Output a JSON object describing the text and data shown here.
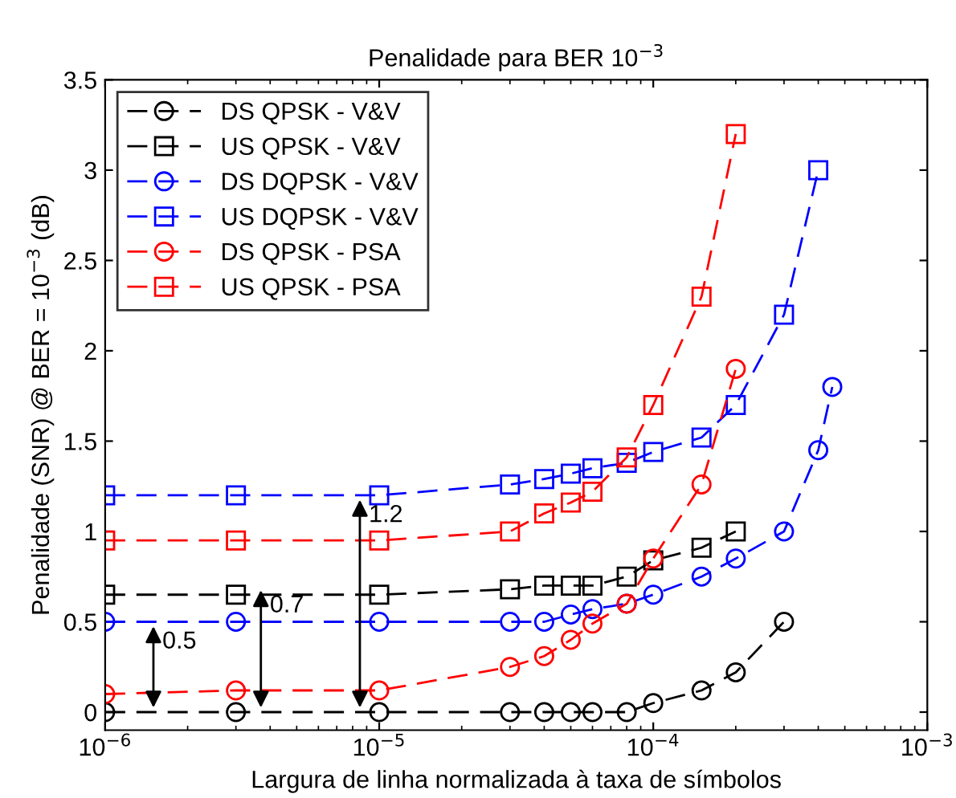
{
  "chart_data": {
    "type": "line",
    "title": "Penalidade para BER 10$^{−3}$",
    "xlabel": "Largura de linha normalizada à taxa de símbolos",
    "ylabel": "Penalidade (SNR) @ BER = 10$^{−3}$ (dB)",
    "log": "x",
    "xlim": [
      1e-06,
      0.001
    ],
    "xticks": [
      {
        "value": 1e-06,
        "label": "10$^{−6}$"
      },
      {
        "value": 1e-05,
        "label": "10$^{−5}$"
      },
      {
        "value": 0.0001,
        "label": "10$^{−4}$"
      },
      {
        "value": 0.001,
        "label": "10$^{−3}$"
      }
    ],
    "ylim": [
      -0.1,
      3.5
    ],
    "yticks": [
      0,
      0.5,
      1,
      1.5,
      2,
      2.5,
      3,
      3.5
    ],
    "grid": false,
    "legend": "top left",
    "line_style": "dashed",
    "series": [
      {
        "name": "DS QPSK - V&V",
        "color": "#000000",
        "marker": "circle",
        "x": [
          1e-06,
          3e-06,
          1e-05,
          3e-05,
          4e-05,
          5e-05,
          6e-05,
          8e-05,
          0.0001,
          0.00015,
          0.0002,
          0.0003
        ],
        "values": [
          0,
          0,
          0,
          0,
          0,
          0,
          0,
          0,
          0.05,
          0.12,
          0.22,
          0.5
        ]
      },
      {
        "name": "US QPSK - V&V",
        "color": "#000000",
        "marker": "square",
        "x": [
          1e-06,
          3e-06,
          1e-05,
          3e-05,
          4e-05,
          5e-05,
          6e-05,
          8e-05,
          0.0001,
          0.00015,
          0.0002
        ],
        "values": [
          0.65,
          0.65,
          0.65,
          0.68,
          0.7,
          0.7,
          0.7,
          0.75,
          0.84,
          0.91,
          1.0
        ]
      },
      {
        "name": "DS DQPSK - V&V",
        "color": "#0000ff",
        "marker": "circle",
        "x": [
          1e-06,
          3e-06,
          1e-05,
          3e-05,
          4e-05,
          5e-05,
          6e-05,
          8e-05,
          0.0001,
          0.00015,
          0.0002,
          0.0003,
          0.0004,
          0.00045
        ],
        "values": [
          0.5,
          0.5,
          0.5,
          0.5,
          0.5,
          0.54,
          0.57,
          0.6,
          0.65,
          0.75,
          0.85,
          1.0,
          1.45,
          1.8
        ]
      },
      {
        "name": "US DQPSK - V&V",
        "color": "#0000ff",
        "marker": "square",
        "x": [
          1e-06,
          3e-06,
          1e-05,
          3e-05,
          4e-05,
          5e-05,
          6e-05,
          8e-05,
          0.0001,
          0.00015,
          0.0002,
          0.0003,
          0.0004
        ],
        "values": [
          1.2,
          1.2,
          1.2,
          1.26,
          1.29,
          1.32,
          1.35,
          1.38,
          1.44,
          1.52,
          1.7,
          2.2,
          3.0
        ]
      },
      {
        "name": "DS QPSK - PSA",
        "color": "#ff0000",
        "marker": "circle",
        "x": [
          1e-06,
          3e-06,
          1e-05,
          3e-05,
          4e-05,
          5e-05,
          6e-05,
          8e-05,
          0.0001,
          0.00015,
          0.0002
        ],
        "values": [
          0.1,
          0.12,
          0.12,
          0.25,
          0.31,
          0.4,
          0.49,
          0.6,
          0.85,
          1.26,
          1.9
        ]
      },
      {
        "name": "US QPSK - PSA",
        "color": "#ff0000",
        "marker": "square",
        "x": [
          1e-06,
          3e-06,
          1e-05,
          3e-05,
          4e-05,
          5e-05,
          6e-05,
          8e-05,
          0.0001,
          0.00015,
          0.0002
        ],
        "values": [
          0.95,
          0.95,
          0.95,
          1.0,
          1.1,
          1.16,
          1.22,
          1.41,
          1.7,
          2.3,
          3.2
        ]
      }
    ],
    "annotations": [
      {
        "text": "0.5",
        "x": 1.5e-06,
        "y": 0.5
      },
      {
        "text": "0.7",
        "x": 3.7e-06,
        "y": 0.7
      },
      {
        "text": "1.2",
        "x": 8.5e-06,
        "y": 1.2
      }
    ]
  }
}
